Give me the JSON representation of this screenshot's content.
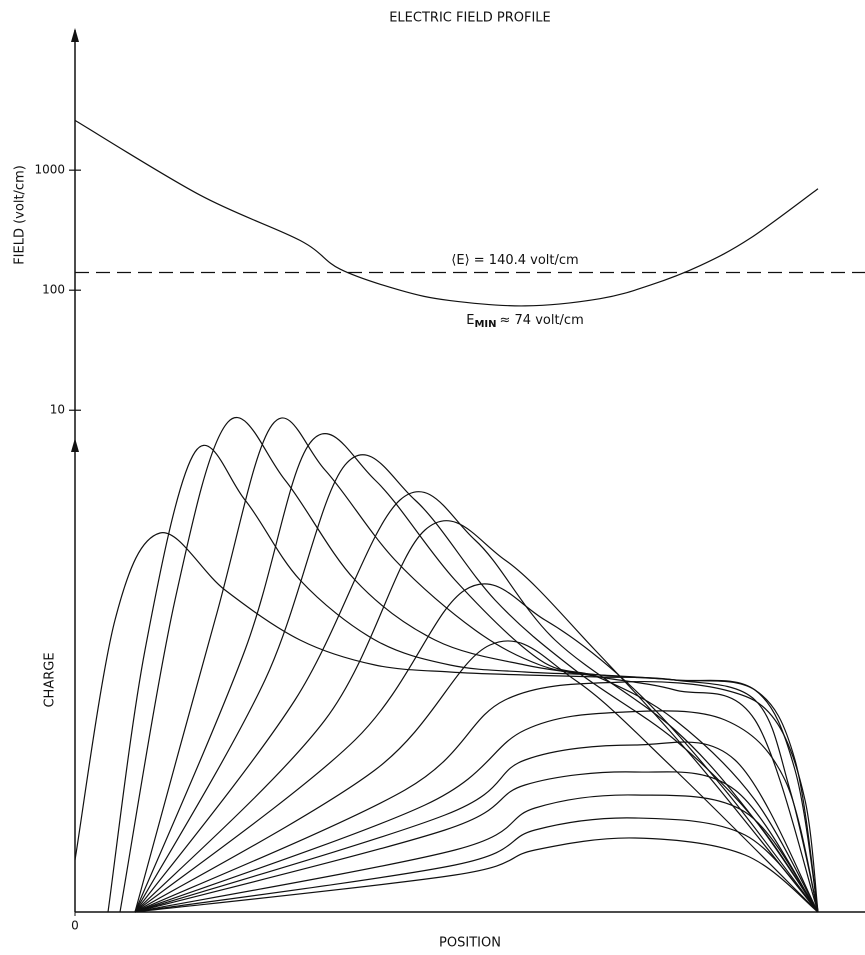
{
  "chart_data": [
    {
      "type": "line",
      "title": "ELECTRIC FIELD PROFILE",
      "ylabel": "FIELD (volt/cm)",
      "log_y": true,
      "xlim": [
        0,
        790
      ],
      "ylim": [
        3,
        15000
      ],
      "yticks": [
        10,
        100,
        1000
      ],
      "series": [
        {
          "color": "#111111",
          "x": [
            0,
            125,
            225,
            265,
            325,
            375,
            450,
            525,
            575,
            625,
            675,
            743
          ],
          "values": [
            2600,
            620,
            260,
            150,
            100,
            82,
            74,
            85,
            110,
            160,
            270,
            700
          ]
        }
      ],
      "mean_field": {
        "value": 140.4,
        "label": "⟨E⟩ = 140.4 volt/cm"
      },
      "min_field": {
        "value": 74,
        "symbol": "E",
        "subscript": "MIN",
        "label": "≈ 74 volt/cm"
      }
    },
    {
      "type": "line",
      "ylabel": "CHARGE",
      "xlabel": "POSITION",
      "xlim": [
        0,
        790
      ],
      "xticks": [
        0
      ],
      "ylim": [
        0,
        500
      ],
      "series": [
        {
          "color": "#111111",
          "x": [
            0,
            40,
            85,
            150,
            225,
            300,
            375,
            450,
            525,
            600,
            680,
            715,
            743
          ],
          "values": [
            52,
            292,
            379,
            322,
            272,
            247,
            240,
            237,
            235,
            232,
            212,
            122,
            0
          ]
        },
        {
          "color": "#111111",
          "x": [
            33,
            70,
            120,
            170,
            225,
            300,
            375,
            450,
            525,
            600,
            680,
            720,
            743
          ],
          "values": [
            0,
            262,
            460,
            412,
            332,
            272,
            247,
            240,
            237,
            232,
            222,
            142,
            0
          ]
        },
        {
          "color": "#111111",
          "x": [
            45,
            100,
            153,
            210,
            280,
            360,
            450,
            525,
            600,
            680,
            720,
            743
          ],
          "values": [
            0,
            312,
            490,
            432,
            332,
            272,
            247,
            237,
            232,
            222,
            152,
            0
          ]
        },
        {
          "color": "#111111",
          "x": [
            60,
            140,
            197,
            250,
            320,
            400,
            465,
            525,
            600,
            680,
            743
          ],
          "values": [
            0,
            292,
            487,
            442,
            352,
            282,
            247,
            235,
            222,
            192,
            0
          ]
        },
        {
          "color": "#111111",
          "x": [
            60,
            170,
            235,
            300,
            380,
            465,
            525,
            600,
            680,
            743
          ],
          "values": [
            0,
            262,
            469,
            432,
            332,
            252,
            234,
            192,
            112,
            0
          ]
        },
        {
          "color": "#111111",
          "x": [
            60,
            190,
            270,
            340,
            420,
            500,
            600,
            680,
            743
          ],
          "values": [
            0,
            232,
            447,
            412,
            312,
            242,
            172,
            92,
            0
          ]
        },
        {
          "color": "#111111",
          "x": [
            60,
            220,
            325,
            400,
            480,
            600,
            680,
            743
          ],
          "values": [
            0,
            212,
            412,
            372,
            272,
            182,
            92,
            0
          ]
        },
        {
          "color": "#111111",
          "x": [
            60,
            250,
            350,
            430,
            520,
            620,
            743
          ],
          "values": [
            0,
            192,
            382,
            352,
            262,
            152,
            0
          ]
        },
        {
          "color": "#111111",
          "x": [
            60,
            280,
            390,
            470,
            560,
            650,
            743
          ],
          "values": [
            0,
            172,
            322,
            292,
            222,
            122,
            0
          ]
        },
        {
          "color": "#111111",
          "x": [
            60,
            300,
            415,
            500,
            600,
            743
          ],
          "values": [
            0,
            142,
            267,
            232,
            142,
            0
          ]
        },
        {
          "color": "#111111",
          "x": [
            60,
            330,
            430,
            550,
            650,
            700,
            730,
            743
          ],
          "values": [
            0,
            122,
            212,
            230,
            222,
            192,
            112,
            0
          ]
        },
        {
          "color": "#111111",
          "x": [
            60,
            350,
            450,
            550,
            650,
            710,
            743
          ],
          "values": [
            0,
            107,
            182,
            200,
            192,
            132,
            0
          ]
        },
        {
          "color": "#111111",
          "x": [
            60,
            370,
            450,
            560,
            660,
            743
          ],
          "values": [
            0,
            97,
            152,
            167,
            152,
            0
          ]
        },
        {
          "color": "#111111",
          "x": [
            60,
            370,
            450,
            560,
            660,
            743
          ],
          "values": [
            0,
            82,
            127,
            140,
            122,
            0
          ]
        },
        {
          "color": "#111111",
          "x": [
            60,
            380,
            460,
            560,
            670,
            743
          ],
          "values": [
            0,
            62,
            104,
            117,
            100,
            0
          ]
        },
        {
          "color": "#111111",
          "x": [
            60,
            380,
            460,
            560,
            670,
            743
          ],
          "values": [
            0,
            47,
            82,
            94,
            77,
            0
          ]
        },
        {
          "color": "#111111",
          "x": [
            60,
            380,
            460,
            560,
            670,
            743
          ],
          "values": [
            0,
            37,
            62,
            74,
            57,
            0
          ]
        }
      ]
    }
  ]
}
